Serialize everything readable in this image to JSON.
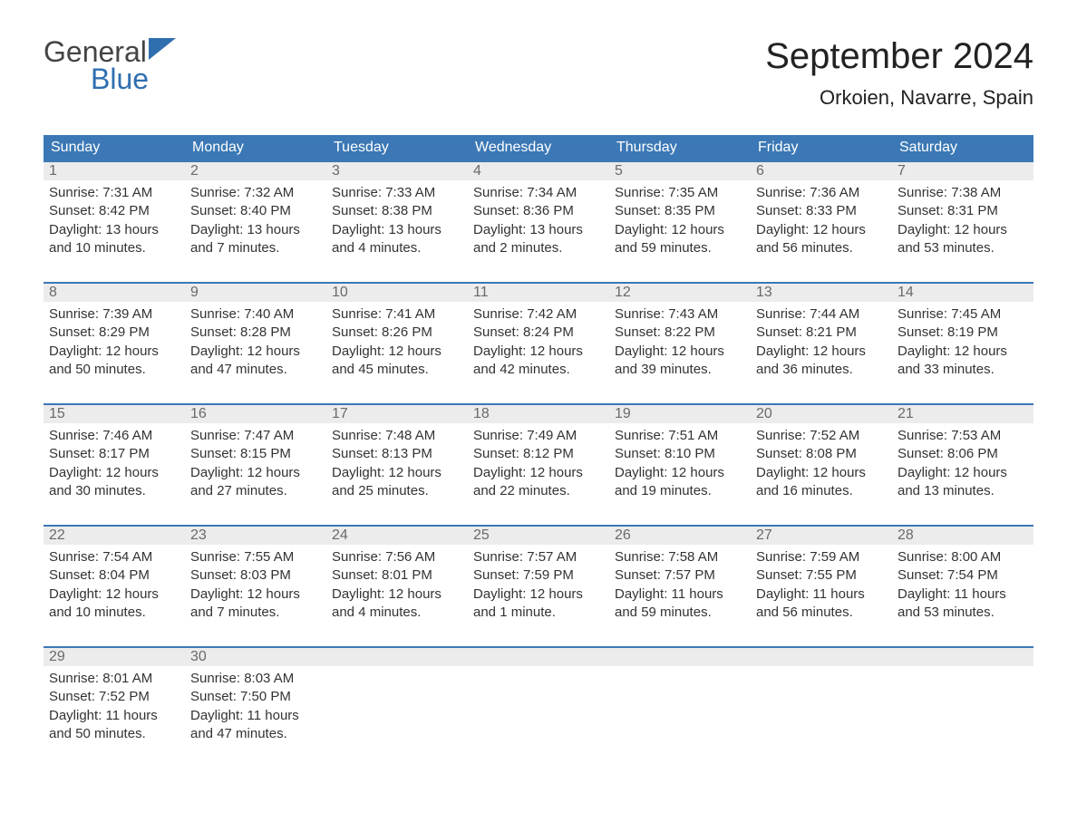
{
  "logo": {
    "word1": "General",
    "word2": "Blue"
  },
  "title": "September 2024",
  "location": "Orkoien, Navarre, Spain",
  "colors": {
    "header_bg": "#3b78b5",
    "header_text": "#ffffff",
    "daynum_bg": "#ececec",
    "daynum_border": "#3b78b5",
    "daynum_text": "#6a6a6a",
    "body_text": "#333333",
    "background": "#ffffff",
    "logo_blue": "#2f6fb0"
  },
  "typography": {
    "title_fontsize": 40,
    "location_fontsize": 22,
    "dow_fontsize": 16,
    "cell_fontsize": 15
  },
  "calendar": {
    "type": "table",
    "days_of_week": [
      "Sunday",
      "Monday",
      "Tuesday",
      "Wednesday",
      "Thursday",
      "Friday",
      "Saturday"
    ],
    "weeks": [
      [
        {
          "n": "1",
          "sr": "Sunrise: 7:31 AM",
          "ss": "Sunset: 8:42 PM",
          "d1": "Daylight: 13 hours",
          "d2": "and 10 minutes."
        },
        {
          "n": "2",
          "sr": "Sunrise: 7:32 AM",
          "ss": "Sunset: 8:40 PM",
          "d1": "Daylight: 13 hours",
          "d2": "and 7 minutes."
        },
        {
          "n": "3",
          "sr": "Sunrise: 7:33 AM",
          "ss": "Sunset: 8:38 PM",
          "d1": "Daylight: 13 hours",
          "d2": "and 4 minutes."
        },
        {
          "n": "4",
          "sr": "Sunrise: 7:34 AM",
          "ss": "Sunset: 8:36 PM",
          "d1": "Daylight: 13 hours",
          "d2": "and 2 minutes."
        },
        {
          "n": "5",
          "sr": "Sunrise: 7:35 AM",
          "ss": "Sunset: 8:35 PM",
          "d1": "Daylight: 12 hours",
          "d2": "and 59 minutes."
        },
        {
          "n": "6",
          "sr": "Sunrise: 7:36 AM",
          "ss": "Sunset: 8:33 PM",
          "d1": "Daylight: 12 hours",
          "d2": "and 56 minutes."
        },
        {
          "n": "7",
          "sr": "Sunrise: 7:38 AM",
          "ss": "Sunset: 8:31 PM",
          "d1": "Daylight: 12 hours",
          "d2": "and 53 minutes."
        }
      ],
      [
        {
          "n": "8",
          "sr": "Sunrise: 7:39 AM",
          "ss": "Sunset: 8:29 PM",
          "d1": "Daylight: 12 hours",
          "d2": "and 50 minutes."
        },
        {
          "n": "9",
          "sr": "Sunrise: 7:40 AM",
          "ss": "Sunset: 8:28 PM",
          "d1": "Daylight: 12 hours",
          "d2": "and 47 minutes."
        },
        {
          "n": "10",
          "sr": "Sunrise: 7:41 AM",
          "ss": "Sunset: 8:26 PM",
          "d1": "Daylight: 12 hours",
          "d2": "and 45 minutes."
        },
        {
          "n": "11",
          "sr": "Sunrise: 7:42 AM",
          "ss": "Sunset: 8:24 PM",
          "d1": "Daylight: 12 hours",
          "d2": "and 42 minutes."
        },
        {
          "n": "12",
          "sr": "Sunrise: 7:43 AM",
          "ss": "Sunset: 8:22 PM",
          "d1": "Daylight: 12 hours",
          "d2": "and 39 minutes."
        },
        {
          "n": "13",
          "sr": "Sunrise: 7:44 AM",
          "ss": "Sunset: 8:21 PM",
          "d1": "Daylight: 12 hours",
          "d2": "and 36 minutes."
        },
        {
          "n": "14",
          "sr": "Sunrise: 7:45 AM",
          "ss": "Sunset: 8:19 PM",
          "d1": "Daylight: 12 hours",
          "d2": "and 33 minutes."
        }
      ],
      [
        {
          "n": "15",
          "sr": "Sunrise: 7:46 AM",
          "ss": "Sunset: 8:17 PM",
          "d1": "Daylight: 12 hours",
          "d2": "and 30 minutes."
        },
        {
          "n": "16",
          "sr": "Sunrise: 7:47 AM",
          "ss": "Sunset: 8:15 PM",
          "d1": "Daylight: 12 hours",
          "d2": "and 27 minutes."
        },
        {
          "n": "17",
          "sr": "Sunrise: 7:48 AM",
          "ss": "Sunset: 8:13 PM",
          "d1": "Daylight: 12 hours",
          "d2": "and 25 minutes."
        },
        {
          "n": "18",
          "sr": "Sunrise: 7:49 AM",
          "ss": "Sunset: 8:12 PM",
          "d1": "Daylight: 12 hours",
          "d2": "and 22 minutes."
        },
        {
          "n": "19",
          "sr": "Sunrise: 7:51 AM",
          "ss": "Sunset: 8:10 PM",
          "d1": "Daylight: 12 hours",
          "d2": "and 19 minutes."
        },
        {
          "n": "20",
          "sr": "Sunrise: 7:52 AM",
          "ss": "Sunset: 8:08 PM",
          "d1": "Daylight: 12 hours",
          "d2": "and 16 minutes."
        },
        {
          "n": "21",
          "sr": "Sunrise: 7:53 AM",
          "ss": "Sunset: 8:06 PM",
          "d1": "Daylight: 12 hours",
          "d2": "and 13 minutes."
        }
      ],
      [
        {
          "n": "22",
          "sr": "Sunrise: 7:54 AM",
          "ss": "Sunset: 8:04 PM",
          "d1": "Daylight: 12 hours",
          "d2": "and 10 minutes."
        },
        {
          "n": "23",
          "sr": "Sunrise: 7:55 AM",
          "ss": "Sunset: 8:03 PM",
          "d1": "Daylight: 12 hours",
          "d2": "and 7 minutes."
        },
        {
          "n": "24",
          "sr": "Sunrise: 7:56 AM",
          "ss": "Sunset: 8:01 PM",
          "d1": "Daylight: 12 hours",
          "d2": "and 4 minutes."
        },
        {
          "n": "25",
          "sr": "Sunrise: 7:57 AM",
          "ss": "Sunset: 7:59 PM",
          "d1": "Daylight: 12 hours",
          "d2": "and 1 minute."
        },
        {
          "n": "26",
          "sr": "Sunrise: 7:58 AM",
          "ss": "Sunset: 7:57 PM",
          "d1": "Daylight: 11 hours",
          "d2": "and 59 minutes."
        },
        {
          "n": "27",
          "sr": "Sunrise: 7:59 AM",
          "ss": "Sunset: 7:55 PM",
          "d1": "Daylight: 11 hours",
          "d2": "and 56 minutes."
        },
        {
          "n": "28",
          "sr": "Sunrise: 8:00 AM",
          "ss": "Sunset: 7:54 PM",
          "d1": "Daylight: 11 hours",
          "d2": "and 53 minutes."
        }
      ],
      [
        {
          "n": "29",
          "sr": "Sunrise: 8:01 AM",
          "ss": "Sunset: 7:52 PM",
          "d1": "Daylight: 11 hours",
          "d2": "and 50 minutes."
        },
        {
          "n": "30",
          "sr": "Sunrise: 8:03 AM",
          "ss": "Sunset: 7:50 PM",
          "d1": "Daylight: 11 hours",
          "d2": "and 47 minutes."
        },
        null,
        null,
        null,
        null,
        null
      ]
    ]
  }
}
